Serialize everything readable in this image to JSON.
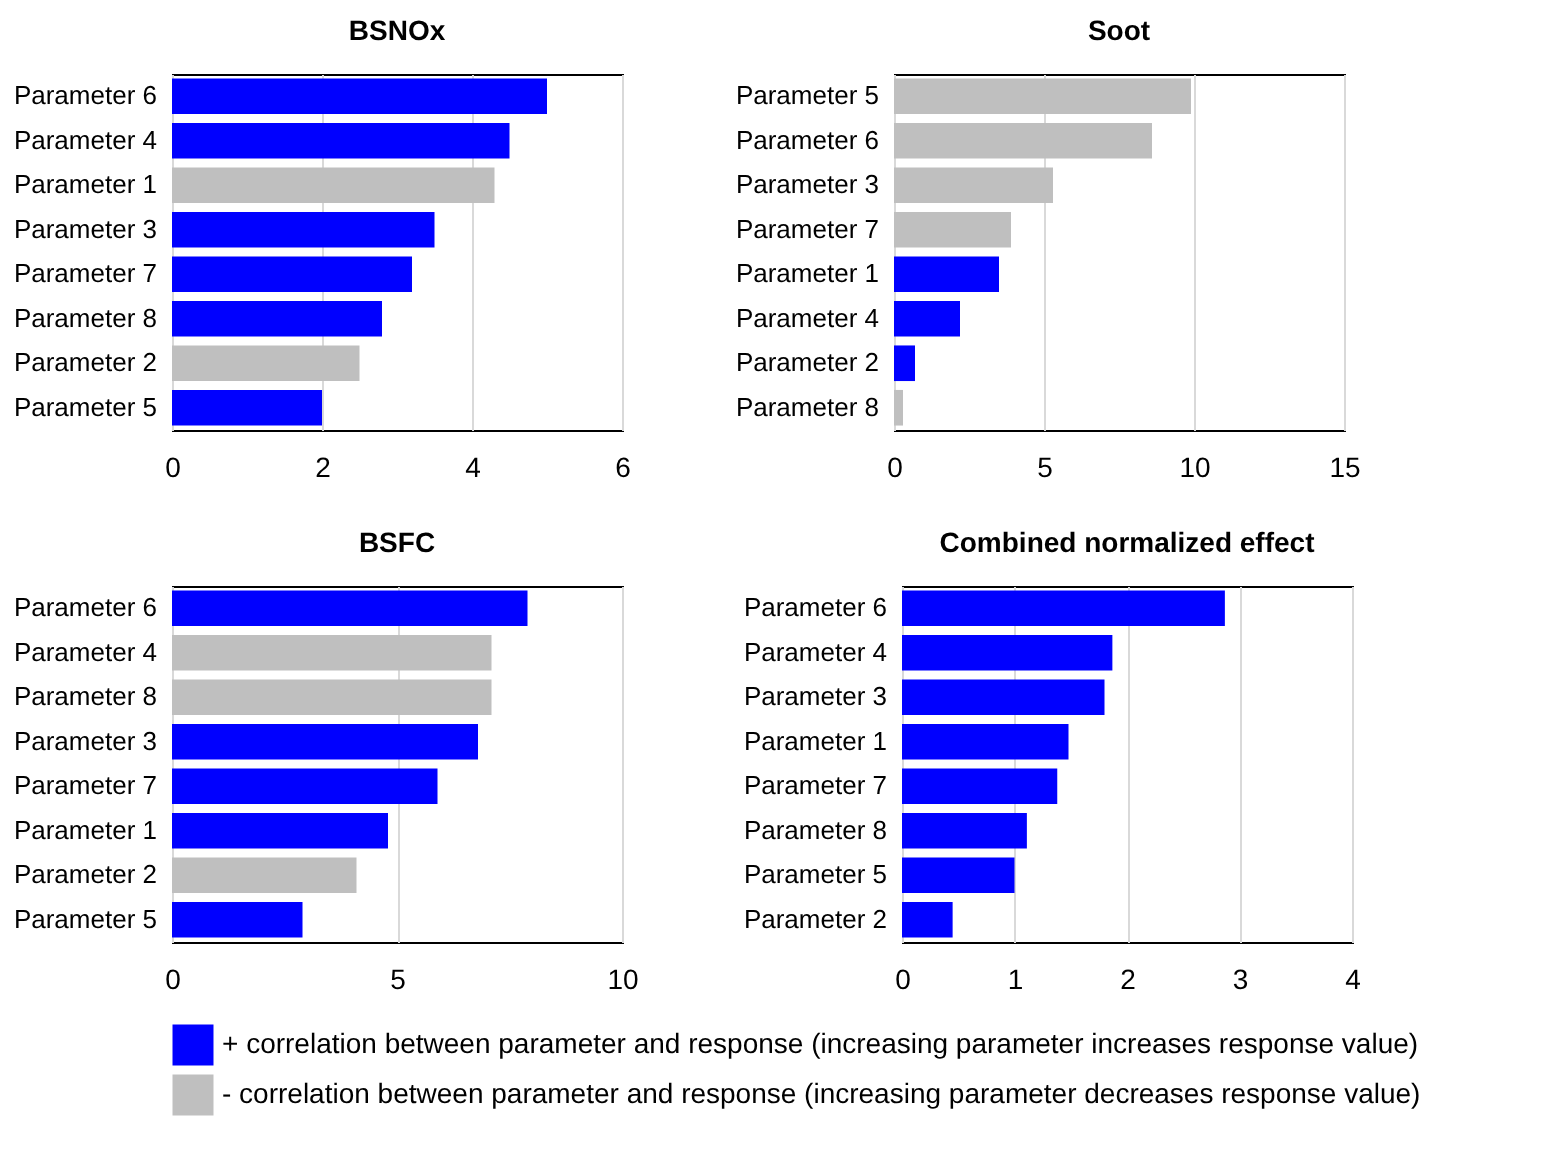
{
  "chart_data": [
    {
      "type": "bar",
      "orientation": "horizontal",
      "title": "BSNOx",
      "categories": [
        "Parameter 6",
        "Parameter 4",
        "Parameter 1",
        "Parameter 3",
        "Parameter 7",
        "Parameter 8",
        "Parameter 2",
        "Parameter 5"
      ],
      "series": [
        {
          "name": "+ correlation between parameter and response (increasing parameter increases response value)",
          "color": "#0000ff",
          "values": [
            5.0,
            4.5,
            null,
            3.5,
            3.2,
            2.8,
            null,
            2.0
          ]
        },
        {
          "name": "- correlation between parameter and response (increasing parameter decreases response value)",
          "color": "#bfbfbf",
          "values": [
            null,
            null,
            4.3,
            null,
            null,
            null,
            2.5,
            null
          ]
        }
      ],
      "xlim": [
        0,
        6
      ],
      "xticks": [
        0,
        2,
        4,
        6
      ],
      "grid": "x",
      "legend": "bottom"
    },
    {
      "type": "bar",
      "orientation": "horizontal",
      "title": "Soot",
      "categories": [
        "Parameter 5",
        "Parameter 6",
        "Parameter 3",
        "Parameter 7",
        "Parameter 1",
        "Parameter 4",
        "Parameter 2",
        "Parameter 8"
      ],
      "series": [
        {
          "name": "+ correlation between parameter and response (increasing parameter increases response value)",
          "color": "#0000ff",
          "values": [
            null,
            null,
            null,
            null,
            3.5,
            2.2,
            0.7,
            null
          ]
        },
        {
          "name": "- correlation between parameter and response (increasing parameter decreases response value)",
          "color": "#bfbfbf",
          "values": [
            9.9,
            8.6,
            5.3,
            3.9,
            null,
            null,
            null,
            0.3
          ]
        }
      ],
      "xlim": [
        0,
        15
      ],
      "xticks": [
        0,
        5,
        10,
        15
      ],
      "grid": "x",
      "legend": "bottom"
    },
    {
      "type": "bar",
      "orientation": "horizontal",
      "title": "BSFC",
      "categories": [
        "Parameter 6",
        "Parameter 4",
        "Parameter 8",
        "Parameter 3",
        "Parameter 7",
        "Parameter 1",
        "Parameter 2",
        "Parameter 5"
      ],
      "series": [
        {
          "name": "+ correlation between parameter and response (increasing parameter increases response value)",
          "color": "#0000ff",
          "values": [
            7.9,
            null,
            null,
            6.8,
            5.9,
            4.8,
            null,
            2.9
          ]
        },
        {
          "name": "- correlation between parameter and response (increasing parameter decreases response value)",
          "color": "#bfbfbf",
          "values": [
            null,
            7.1,
            7.1,
            null,
            null,
            null,
            4.1,
            null
          ]
        }
      ],
      "xlim": [
        0,
        10
      ],
      "xticks": [
        0,
        5,
        10
      ],
      "grid": "x",
      "legend": "bottom"
    },
    {
      "type": "bar",
      "orientation": "horizontal",
      "title": "Combined normalized effect",
      "categories": [
        "Parameter 6",
        "Parameter 4",
        "Parameter 3",
        "Parameter 1",
        "Parameter 7",
        "Parameter 8",
        "Parameter 5",
        "Parameter 2"
      ],
      "series": [
        {
          "name": "+ correlation between parameter and response (increasing parameter increases response value)",
          "color": "#0000ff",
          "values": [
            2.87,
            1.87,
            1.8,
            1.48,
            1.38,
            1.11,
            1.0,
            0.45
          ]
        }
      ],
      "xlim": [
        0,
        4
      ],
      "xticks": [
        0,
        1,
        2,
        3,
        4
      ],
      "grid": "x",
      "legend": "bottom"
    }
  ]
}
